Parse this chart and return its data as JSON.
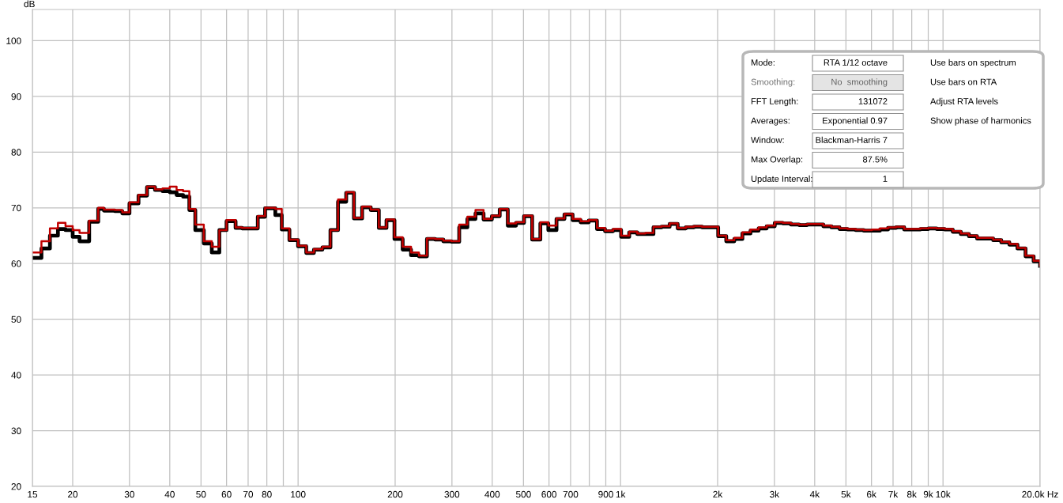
{
  "chart_data": {
    "type": "step",
    "ylabel": "dB",
    "log": "x",
    "grid": true,
    "legend": false,
    "xlim": [
      15,
      20000
    ],
    "ylim": [
      20,
      105.6
    ],
    "xticks": [
      15,
      20,
      30,
      40,
      50,
      60,
      70,
      80,
      {
        "value": 90,
        "label": null
      },
      100,
      200,
      300,
      400,
      500,
      600,
      700,
      {
        "value": 800,
        "label": null
      },
      900,
      {
        "value": 1000,
        "label": "1k"
      },
      {
        "value": 2000,
        "label": "2k"
      },
      {
        "value": 3000,
        "label": "3k"
      },
      {
        "value": 4000,
        "label": "4k"
      },
      {
        "value": 5000,
        "label": "5k"
      },
      {
        "value": 6000,
        "label": "6k"
      },
      {
        "value": 7000,
        "label": "7k"
      },
      {
        "value": 8000,
        "label": "8k"
      },
      {
        "value": 9000,
        "label": "9k"
      },
      {
        "value": 10000,
        "label": "10k"
      },
      {
        "value": 20000,
        "label": "20.0k Hz"
      }
    ],
    "yticks": [
      20,
      30,
      40,
      50,
      60,
      70,
      80,
      90,
      100
    ],
    "x": [
      15,
      16,
      17,
      18,
      19,
      20,
      21,
      22.5,
      24,
      25,
      27,
      28.5,
      30,
      32,
      34,
      36,
      38,
      40,
      42,
      44,
      46,
      48,
      51,
      54,
      57,
      60,
      64,
      67,
      71,
      75,
      79,
      85,
      89,
      94,
      100,
      106,
      112,
      119,
      126,
      133,
      141,
      149,
      158,
      168,
      178,
      188,
      199,
      211,
      224,
      237,
      251,
      266,
      282,
      299,
      316,
      335,
      355,
      376,
      399,
      422,
      447,
      474,
      502,
      532,
      564,
      597,
      633,
      670,
      710,
      752,
      797,
      845,
      895,
      948,
      1004,
      1064,
      1127,
      1194,
      1265,
      1340,
      1420,
      1504,
      1594,
      1688,
      1789,
      1895,
      2008,
      2127,
      2253,
      2387,
      2529,
      2680,
      2839,
      3008,
      3187,
      3376,
      3577,
      3790,
      4015,
      4254,
      4507,
      4775,
      5059,
      5360,
      5678,
      6016,
      6374,
      6753,
      7154,
      7580,
      8030,
      8508,
      9014,
      9550,
      10118,
      10719,
      11357,
      12032,
      12747,
      13505,
      14308,
      15159,
      16061,
      17016,
      18027,
      19099,
      20000
    ],
    "series": [
      {
        "color": "#000000",
        "values": [
          61,
          62.7,
          65,
          66.2,
          66,
          64.8,
          64,
          67.5,
          69.8,
          69.5,
          69.4,
          69,
          70.8,
          72.2,
          73.7,
          73.2,
          73,
          72.8,
          72.3,
          72,
          69.6,
          66,
          63.6,
          62,
          66,
          67.6,
          66.4,
          66.3,
          66.3,
          68.4,
          69.9,
          68.7,
          66.1,
          64.2,
          63.1,
          61.9,
          62.5,
          62.9,
          66,
          71.1,
          72.7,
          68.1,
          70.1,
          69.6,
          66.4,
          67.8,
          64.4,
          62.5,
          61.5,
          61.3,
          64.4,
          64.3,
          64,
          63.9,
          66.5,
          68,
          69,
          67.9,
          68.5,
          69.7,
          66.8,
          67.3,
          68.5,
          64.3,
          67.2,
          66,
          68,
          68.8,
          67.8,
          67.4,
          67.7,
          66.2,
          65.8,
          66,
          64.8,
          65.6,
          65.3,
          65.3,
          66.5,
          66.6,
          67.1,
          66.3,
          66.5,
          66.6,
          66.5,
          66.5,
          64.9,
          64,
          64.4,
          65.4,
          65.9,
          66.3,
          66.7,
          67.3,
          67.2,
          67,
          66.9,
          67,
          67,
          66.7,
          66.5,
          66.2,
          66.1,
          66,
          65.9,
          65.9,
          66.1,
          66.4,
          66.5,
          66.1,
          66.1,
          66.2,
          66.3,
          66.2,
          66.1,
          65.7,
          65.3,
          64.9,
          64.5,
          64.5,
          64.2,
          63.8,
          63.4,
          62.7,
          61.3,
          60.4,
          59.6
        ]
      },
      {
        "color": "#c00000",
        "values": [
          62,
          64,
          66.3,
          67.3,
          66.7,
          66,
          65.5,
          67.7,
          70,
          69.7,
          69.6,
          69.2,
          71,
          72.3,
          73.8,
          73.3,
          73.5,
          73.8,
          73.2,
          73,
          69.8,
          67,
          64,
          63,
          66,
          67.8,
          66.5,
          66.4,
          66.4,
          68.5,
          70,
          69.8,
          66.3,
          64.3,
          63.2,
          62,
          62.6,
          63,
          66,
          71.5,
          72.8,
          68.2,
          70.2,
          69.7,
          66.5,
          67.9,
          64.7,
          63,
          62,
          61.4,
          64.5,
          64.4,
          64.1,
          64,
          67,
          68.4,
          69.6,
          68,
          68.6,
          69.8,
          67.2,
          67.4,
          68.6,
          64.4,
          67.4,
          66.8,
          68.1,
          68.9,
          68,
          67.6,
          67.8,
          66.4,
          65.9,
          66.2,
          65,
          65.7,
          65.4,
          65.5,
          66.6,
          66.7,
          67.2,
          66.4,
          66.6,
          66.7,
          66.6,
          66.6,
          65,
          64.2,
          64.6,
          65.6,
          66.1,
          66.5,
          66.8,
          67.4,
          67.3,
          67.1,
          67,
          67.1,
          67.1,
          66.8,
          66.6,
          66.3,
          66.2,
          66.1,
          66,
          66.1,
          66.3,
          66.5,
          66.6,
          66.2,
          66.2,
          66.3,
          66.4,
          66.3,
          66.2,
          65.8,
          65.4,
          65,
          64.6,
          64.6,
          64.3,
          63.9,
          63.5,
          62.8,
          61.4,
          60.5,
          59.6
        ]
      }
    ],
    "annotations": [
      "Mode:",
      "RTA 1/12 octave",
      "Smoothing:",
      "No  smoothing",
      "FFT Length:",
      "131072",
      "Averages:",
      "Exponential 0.97",
      "Window:",
      "Blackman-Harris 7",
      "Max Overlap:",
      "87.5%",
      "Update Interval:",
      "1",
      "Use bars on spectrum",
      "Use bars on RTA",
      "Adjust RTA levels",
      "Show phase of harmonics"
    ]
  }
}
